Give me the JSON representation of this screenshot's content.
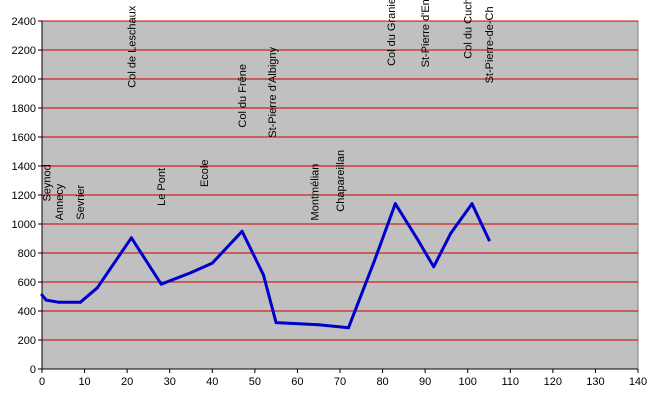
{
  "chart_data": {
    "type": "line",
    "title": "",
    "xlabel": "",
    "ylabel": "",
    "xlim": [
      0,
      140
    ],
    "ylim": [
      0,
      2400
    ],
    "xticks": [
      0,
      10,
      20,
      30,
      40,
      50,
      60,
      70,
      80,
      90,
      100,
      110,
      120,
      130,
      140
    ],
    "yticks": [
      0,
      200,
      400,
      600,
      800,
      1000,
      1200,
      1400,
      1600,
      1800,
      2000,
      2200,
      2400
    ],
    "grid": true,
    "legend": "none",
    "colors": {
      "plot_background": "#c0c0c0",
      "gridline": "#cc0000",
      "line": "#0000cc",
      "page_background": "#ffffff"
    },
    "series": [
      {
        "x": [
          0,
          1,
          4,
          9,
          13,
          21,
          28,
          35,
          40,
          47,
          52,
          55,
          65,
          72,
          78,
          83,
          88,
          92,
          96,
          101,
          105
        ],
        "y": [
          510,
          475,
          460,
          460,
          560,
          905,
          585,
          665,
          730,
          950,
          650,
          320,
          305,
          285,
          740,
          1140,
          905,
          705,
          935,
          1140,
          890
        ]
      }
    ],
    "annotations": [
      {
        "text": "Seynod",
        "x": 1,
        "y": 1155
      },
      {
        "text": "Annecy",
        "x": 4,
        "y": 1025
      },
      {
        "text": "Sevrier",
        "x": 9,
        "y": 1030
      },
      {
        "text": "Col de Leschaux",
        "x": 21,
        "y": 1940
      },
      {
        "text": "Le Pont",
        "x": 28,
        "y": 1125
      },
      {
        "text": "Ecole",
        "x": 38,
        "y": 1255
      },
      {
        "text": "Col du Frêne",
        "x": 47,
        "y": 1665
      },
      {
        "text": "St-Pierre d'Albigny",
        "x": 54,
        "y": 1595
      },
      {
        "text": "Montmélian",
        "x": 64,
        "y": 1025
      },
      {
        "text": "Chapareillan",
        "x": 70,
        "y": 1085
      },
      {
        "text": "Col du Granier",
        "x": 82,
        "y": 2090
      },
      {
        "text": "St-Pierre d'Entremont",
        "x": 90,
        "y": 2080
      },
      {
        "text": "Col du Cucheron",
        "x": 100,
        "y": 2140
      },
      {
        "text": "St-Pierre-de-Ch",
        "x": 105,
        "y": 1970
      }
    ]
  }
}
